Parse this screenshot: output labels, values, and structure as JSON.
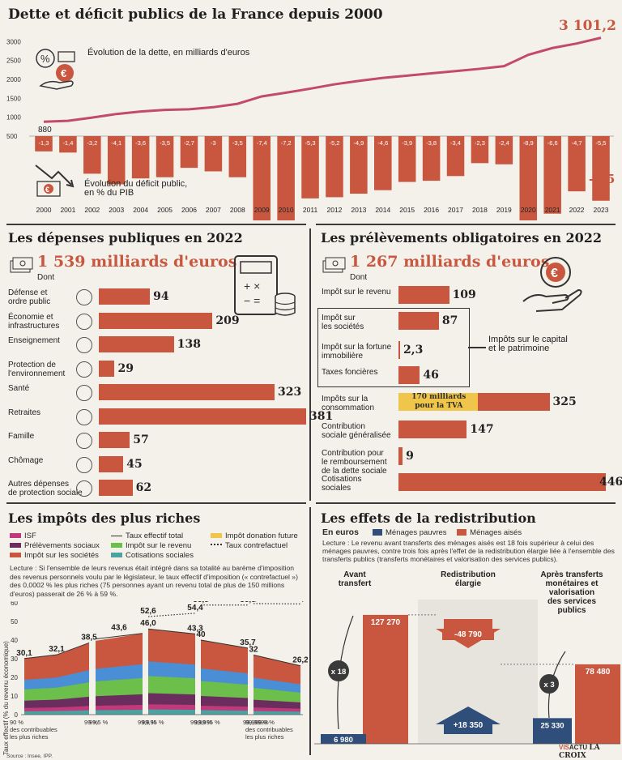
{
  "colors": {
    "accent": "#c9573f",
    "navy": "#2f4e7a",
    "yellow": "#f0c64a",
    "magenta": "#c0397a",
    "purple": "#6b2d5e",
    "green": "#6cbf4a",
    "teal": "#4aa3a0",
    "blue": "#4a8fd6"
  },
  "section1": {
    "title": "Dette et déficit publics de la France depuis 2000",
    "dette_label": "Évolution de la dette, en milliards d'euros",
    "deficit_label": "Évolution du déficit public,\nen % du PIB",
    "last_value": "3 101,2",
    "first_value": "880",
    "last_deficit": "-5,5"
  },
  "chart_data": [
    {
      "type": "line",
      "title": "Évolution de la dette, en milliards d'euros",
      "x": [
        "2000",
        "2001",
        "2002",
        "2003",
        "2004",
        "2005",
        "2006",
        "2007",
        "2008",
        "2009",
        "2010",
        "2011",
        "2012",
        "2013",
        "2014",
        "2015",
        "2016",
        "2017",
        "2018",
        "2019",
        "2020",
        "2021",
        "2022",
        "2023"
      ],
      "values": [
        880,
        905,
        990,
        1085,
        1150,
        1195,
        1210,
        1265,
        1355,
        1550,
        1650,
        1755,
        1870,
        1960,
        2040,
        2100,
        2160,
        2220,
        2280,
        2350,
        2650,
        2830,
        2950,
        3101.2
      ],
      "yticks": [
        "500",
        "1000",
        "1500",
        "2000",
        "2500",
        "3000"
      ],
      "ylim": [
        500,
        3200
      ]
    },
    {
      "type": "bar",
      "title": "Évolution du déficit public, en % du PIB",
      "categories": [
        "2000",
        "2001",
        "2002",
        "2003",
        "2004",
        "2005",
        "2006",
        "2007",
        "2008",
        "2009",
        "2010",
        "2011",
        "2012",
        "2013",
        "2014",
        "2015",
        "2016",
        "2017",
        "2018",
        "2019",
        "2020",
        "2021",
        "2022",
        "2023"
      ],
      "values": [
        -1.3,
        -1.4,
        -3.2,
        -4.1,
        -3.6,
        -3.5,
        -2.7,
        -3,
        -3.5,
        -7.4,
        -7.2,
        -5.3,
        -5.2,
        -4.9,
        -4.6,
        -3.9,
        -3.8,
        -3.4,
        -2.3,
        -2.4,
        -8.9,
        -6.6,
        -4.7,
        -5.5
      ],
      "labels": [
        "-1,3",
        "-1,4",
        "-3,2",
        "-4,1",
        "-3,6",
        "-3,5",
        "-2,7",
        "-3",
        "-3,5",
        "-7,4",
        "-7,2",
        "-5,3",
        "-5,2",
        "-4,9",
        "-4,6",
        "-3,9",
        "-3,8",
        "-3,4",
        "-2,3",
        "-2,4",
        "-8,9",
        "-6,6",
        "-4,7",
        "-5,5"
      ]
    },
    {
      "type": "bar",
      "title": "Les dépenses publiques en 2022",
      "categories": [
        "Défense et\nordre public",
        "Économie et\ninfrastructures",
        "Enseignement",
        "Protection de\nl'environnement",
        "Santé",
        "Retraites",
        "Famille",
        "Chômage",
        "Autres dépenses\nde protection sociale"
      ],
      "values": [
        94,
        209,
        138,
        29,
        323,
        381,
        57,
        45,
        62
      ]
    },
    {
      "type": "bar",
      "title": "Les prélèvements obligatoires en 2022",
      "categories": [
        "Impôt sur le revenu",
        "Impôt sur\nles sociétés",
        "Impôt sur la fortune\nimmobilière",
        "Taxes foncières",
        "Impôts sur la\nconsommation",
        "Contribution\nsociale généralisée",
        "Contribution pour\nle remboursement\nde la dette sociale",
        "Cotisations\nsociales"
      ],
      "values": [
        109,
        87,
        2.3,
        46,
        325,
        147,
        9,
        446
      ],
      "labels": [
        "109",
        "87",
        "2,3",
        "46",
        "325",
        "147",
        "9",
        "446"
      ]
    },
    {
      "type": "area",
      "title": "Les impôts des plus riches",
      "ylabel": "Taux effectif (% du revenu économique)",
      "yticks": [
        "0",
        "10",
        "20",
        "30",
        "40",
        "50",
        "60"
      ],
      "groups": [
        {
          "label": "90 %\ndes contribuables\nles plus riches",
          "end": "99 %",
          "effectif": [
            30.1,
            32.1,
            38.5
          ],
          "effectif_labels": [
            "30,1",
            "32,1",
            "38,5"
          ]
        },
        {
          "label": "99,5 %",
          "end": "99,9 %",
          "effectif": [
            43.6
          ],
          "effectif_labels": [
            "43,6"
          ]
        },
        {
          "label": "99,95 %",
          "end": "99,99 %",
          "effectif": [
            46.0,
            43.3
          ],
          "effectif_labels": [
            "46,0",
            "43,3"
          ],
          "contrefactuel": [
            52.6,
            54.4
          ],
          "contrefactuel_labels": [
            "52,6",
            "54,4"
          ]
        },
        {
          "label": "99,995 %",
          "end": "99,999 %",
          "effectif": [
            40,
            35.7
          ],
          "effectif_labels": [
            "40",
            "35,7"
          ],
          "contrefactuel": [
            58.8,
            58.8
          ],
          "contrefactuel_labels": [
            "58,8",
            "58,8"
          ]
        },
        {
          "label": "99,9998 %\ndes contribuables\nles plus riches",
          "end": "",
          "effectif": [
            32,
            26.2
          ],
          "effectif_labels": [
            "32",
            "26,2"
          ],
          "contrefactuel": [
            59.6,
            59.4
          ],
          "contrefactuel_labels": [
            "59,6",
            "59,4"
          ]
        }
      ]
    },
    {
      "type": "bar",
      "title": "Les effets de la redistribution",
      "categories": [
        "Avant transfert",
        "Redistribution élargie",
        "Après transferts monétaires et valorisation des services publics"
      ],
      "series": [
        {
          "name": "Ménages pauvres",
          "values": [
            6980,
            18350,
            25330
          ]
        },
        {
          "name": "Ménages aisés",
          "values": [
            127270,
            -48790,
            78480
          ]
        }
      ]
    }
  ],
  "depenses": {
    "title": "Les dépenses publiques en 2022",
    "total": "1 539 milliards d'euros",
    "dont": "Dont",
    "items": [
      {
        "label": "Défense et\nordre public",
        "value": "94"
      },
      {
        "label": "Économie et\ninfrastructures",
        "value": "209"
      },
      {
        "label": "Enseignement",
        "value": "138"
      },
      {
        "label": "Protection de\nl'environnement",
        "value": "29"
      },
      {
        "label": "Santé",
        "value": "323"
      },
      {
        "label": "Retraites",
        "value": "381"
      },
      {
        "label": "Famille",
        "value": "57"
      },
      {
        "label": "Chômage",
        "value": "45"
      },
      {
        "label": "Autres dépenses\nde protection sociale",
        "value": "62"
      }
    ]
  },
  "prelevements": {
    "title": "Les prélèvements obligatoires en 2022",
    "total": "1 267 milliards d'euros",
    "dont": "Dont",
    "capital_label": "Impôts sur le capital\net le patrimoine",
    "tva_label": "170 milliards\npour la TVA",
    "items": [
      {
        "label": "Impôt sur le revenu",
        "value": "109"
      },
      {
        "label": "Impôt sur\nles sociétés",
        "value": "87"
      },
      {
        "label": "Impôt sur la fortune\nimmobilière",
        "value": "2,3"
      },
      {
        "label": "Taxes foncières",
        "value": "46"
      },
      {
        "label": "Impôts sur la\nconsommation",
        "value": "325"
      },
      {
        "label": "Contribution\nsociale généralisée",
        "value": "147"
      },
      {
        "label": "Contribution pour\nle remboursement\nde la dette sociale",
        "value": "9"
      },
      {
        "label": "Cotisations\nsociales",
        "value": "446"
      }
    ]
  },
  "riches": {
    "title": "Les impôts des plus riches",
    "legend": {
      "isf": "ISF",
      "prelev": "Prélèvements sociaux",
      "is": "Impôt sur les sociétés",
      "tef": "Taux effectif total",
      "ir": "Impôt sur le revenu",
      "cotis": "Cotisations sociales",
      "donation": "Impôt donation future",
      "tcf": "Taux contrefactuel"
    },
    "lecture": "Lecture : Si l'ensemble de leurs revenus était intégré dans sa totalité au barème d'imposition des revenus personnels voulu par le législateur, le taux effectif d'imposition (« contrefactuel ») des 0,0002 % les plus riches (75 personnes ayant un revenu total de plus de 150 millions d'euros) passerait de 26 % à 59 %.",
    "source": "Source : Insee, IPP."
  },
  "redis": {
    "title": "Les effets de la redistribution",
    "unit": "En euros",
    "leg_pauvres": "Ménages pauvres",
    "leg_aises": "Ménages aisés",
    "lecture": "Lecture : Le revenu avant transferts des ménages aisés est 18 fois supérieur à celui des ménages pauvres, contre trois fois après l'effet de la redistribution élargie liée à l'ensemble des transferts publics (transferts monétaires et valorisation des services publics).",
    "col1": "Avant\ntransfert",
    "col2": "Redistribution\nélargie",
    "col3": "Après transferts\nmonétaires et\nvalorisation\ndes services\npublics",
    "v1a": "127 270",
    "v1p": "6 980",
    "v2a": "-48 790",
    "v2p": "+18 350",
    "v3a": "78 480",
    "v3p": "25 330",
    "x18": "x 18",
    "x3": "x 3"
  },
  "footer": {
    "logo1": "VIS",
    "logo2": "ACTU",
    "logo3": "LA CROIX"
  }
}
